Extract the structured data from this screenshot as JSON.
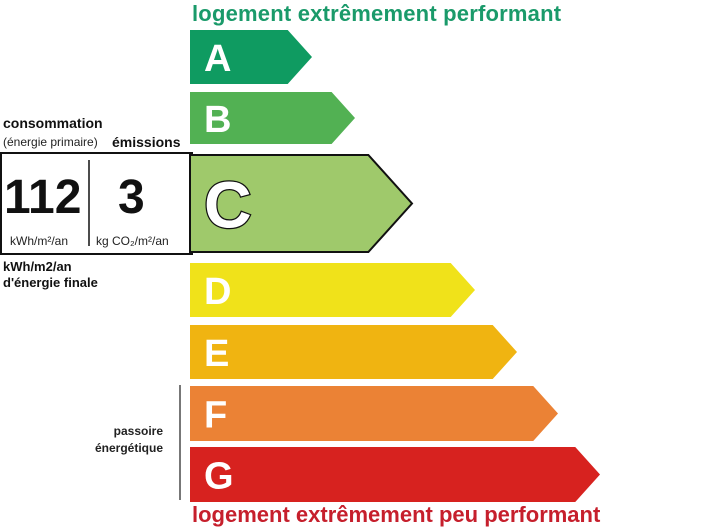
{
  "header_text": "logement extrêmement performant",
  "footer_text": "logement extrêmement peu performant",
  "classes": [
    {
      "letter": "A",
      "color": "#0f9b61"
    },
    {
      "letter": "B",
      "color": "#52b153"
    },
    {
      "letter": "C",
      "color": "#9fc96b"
    },
    {
      "letter": "D",
      "color": "#f0e21a"
    },
    {
      "letter": "E",
      "color": "#f0b411"
    },
    {
      "letter": "F",
      "color": "#eb8235"
    },
    {
      "letter": "G",
      "color": "#d7221f"
    }
  ],
  "current_class": "C",
  "consumption": {
    "title": "consommation",
    "subtitle": "(énergie primaire)",
    "value": "112",
    "unit": "kWh/m²/an",
    "final_unit": "kWh/m2/an",
    "final_label": "d'énergie finale"
  },
  "emissions": {
    "title": "émissions",
    "value": "3",
    "unit": "kg CO₂/m²/an"
  },
  "passoire": {
    "line1": "passoire",
    "line2": "énergétique"
  },
  "colors": {
    "header": "#1a9a6a",
    "footer": "#c61f2c"
  }
}
